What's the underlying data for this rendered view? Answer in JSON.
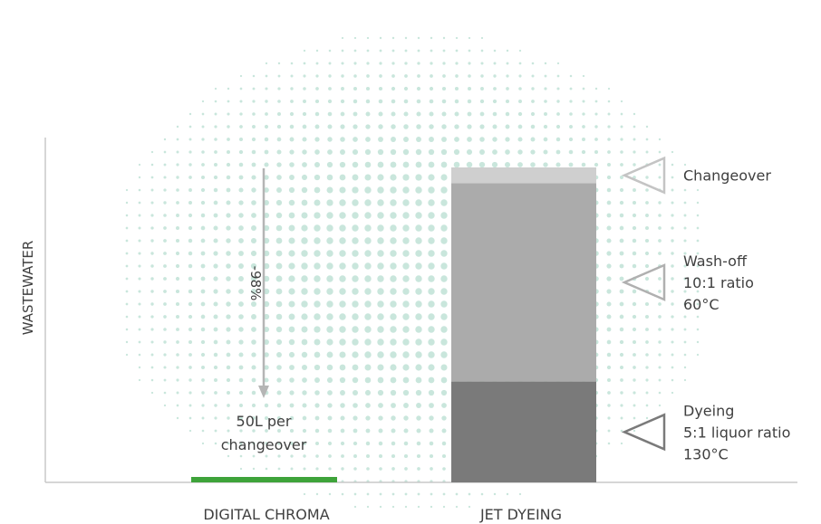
{
  "chart_data": {
    "type": "bar",
    "stacked": true,
    "ylabel": "WASTEWATER",
    "xlabel": "",
    "title": "",
    "grid": false,
    "categories": [
      "DIGITAL CHROMA",
      "JET DYEING"
    ],
    "digital_chroma": {
      "value_fraction": 0.02,
      "annotation_lines": [
        "50L per",
        "changeover"
      ],
      "reduction_label": "-98%"
    },
    "jet_dyeing": {
      "segments": [
        {
          "name": "Dyeing",
          "fraction": 0.32,
          "color": "#7a7a7a",
          "label_lines": [
            "Dyeing",
            "5:1 liquor ratio",
            "130°C"
          ]
        },
        {
          "name": "Wash-off",
          "fraction": 0.63,
          "color": "#ababab",
          "label_lines": [
            "Wash-off",
            "10:1 ratio",
            "60°C"
          ]
        },
        {
          "name": "Changeover",
          "fraction": 0.05,
          "color": "#cfcfcf",
          "label_lines": [
            "Changeover"
          ]
        }
      ]
    },
    "colors": {
      "digital_chroma_bar": "#3ea33a",
      "dots": "#c9e6dc",
      "axis": "#c8c8c8",
      "arrow": "#b5b5b5",
      "text": "#3f3f3f"
    }
  }
}
